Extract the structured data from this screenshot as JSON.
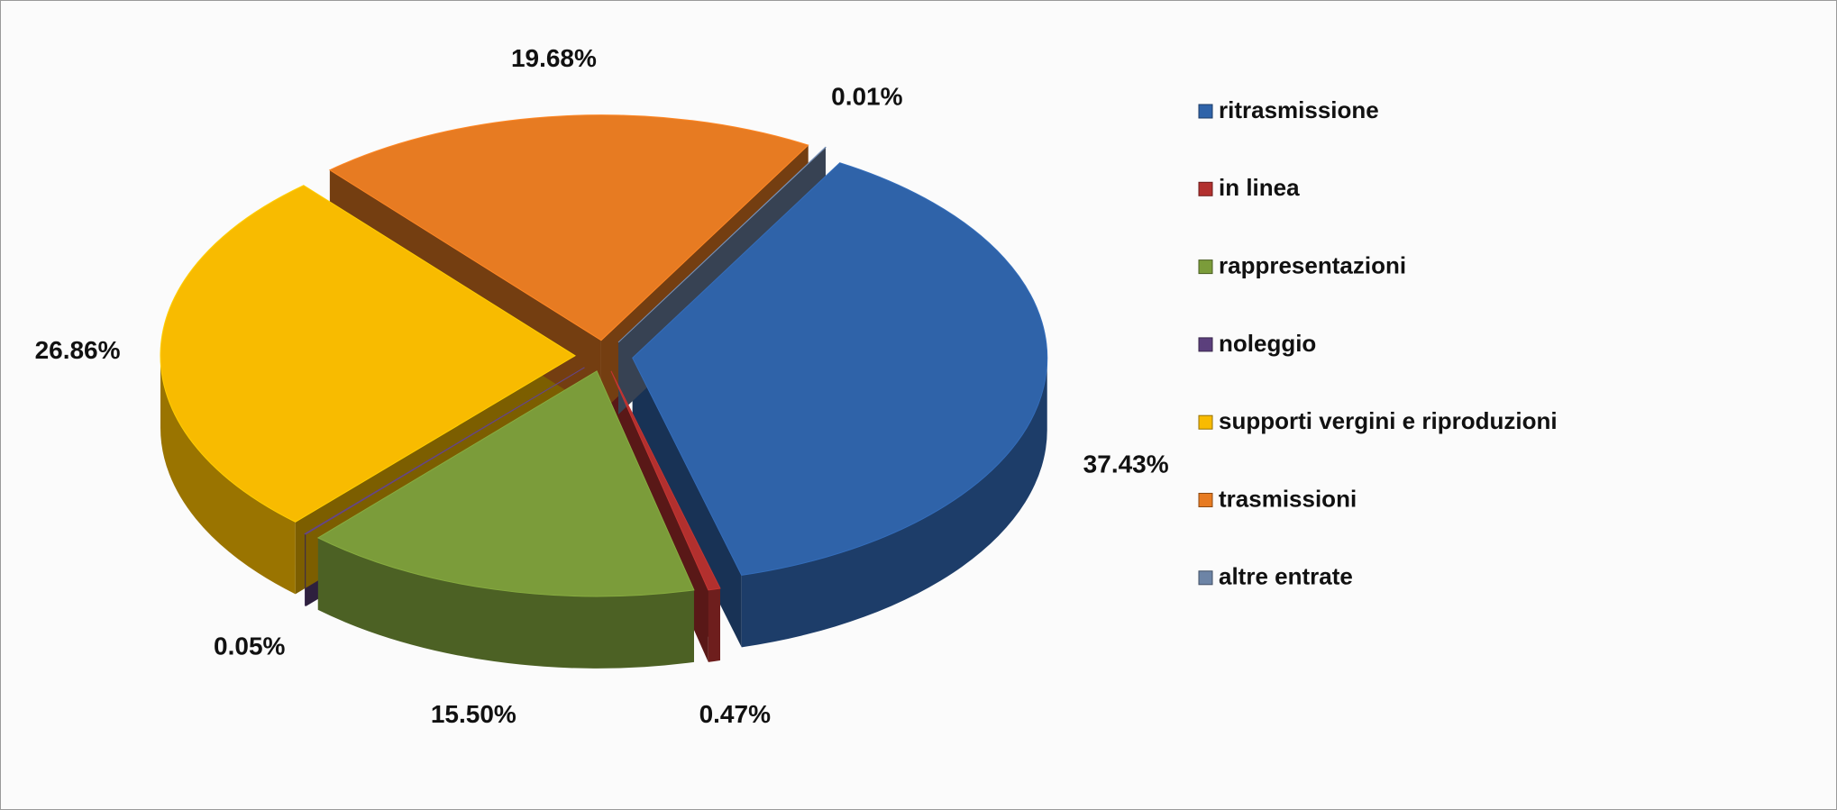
{
  "chart_data": {
    "type": "pie",
    "categories": [
      "ritrasmissione",
      "in linea",
      "rappresentazioni",
      "noleggio",
      "supporti vergini e riproduzioni",
      "trasmissioni",
      "altre entrate"
    ],
    "values": [
      37.43,
      0.47,
      15.5,
      0.05,
      26.86,
      19.68,
      0.01
    ],
    "value_labels": [
      "37.43%",
      "0.47%",
      "15.50%",
      "0.05%",
      "26.86%",
      "19.68%",
      "0.01%"
    ],
    "colors": [
      "#2f63a9",
      "#b2302e",
      "#7b9c3a",
      "#5b3f7c",
      "#f8bb00",
      "#e77b22",
      "#6d84a6"
    ],
    "legend": "right"
  }
}
